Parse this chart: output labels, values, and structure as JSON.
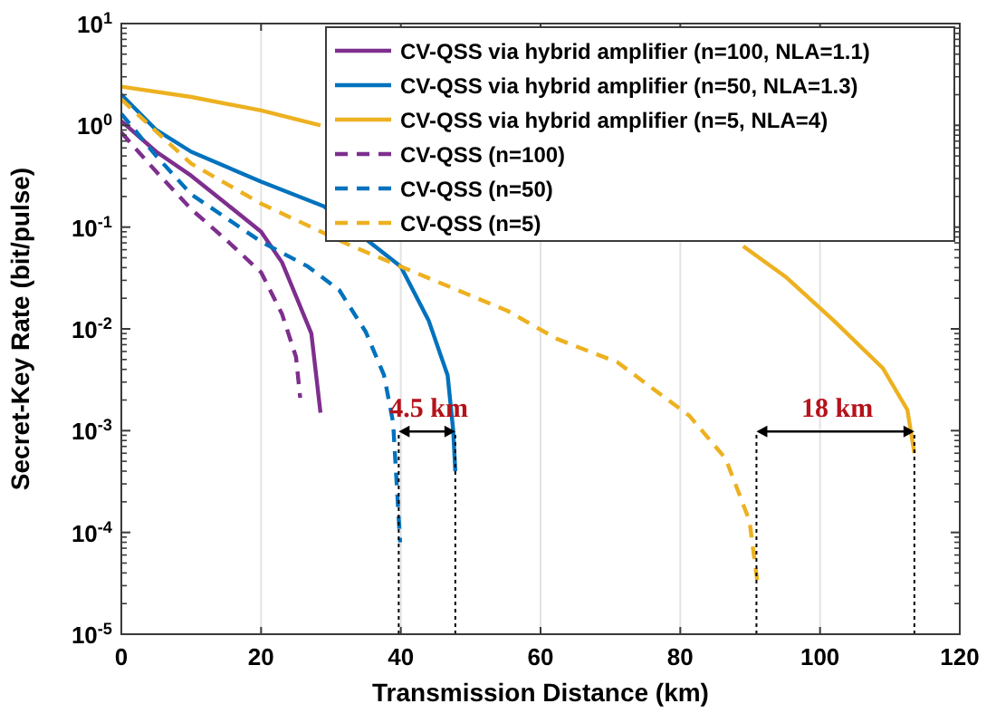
{
  "chart_data": {
    "type": "line",
    "xlabel": "Transmission Distance (km)",
    "ylabel": "Secret-Key Rate (bit/pulse)",
    "log": "y",
    "grid": "x",
    "legend": "top right",
    "xlim": [
      0,
      120
    ],
    "xticks": [
      0,
      20,
      40,
      60,
      80,
      100,
      120
    ],
    "ylim": [
      1e-05,
      10
    ],
    "yticks": [
      {
        "value": 1e-05,
        "label": "10$^{-5}$"
      },
      {
        "value": 0.0001,
        "label": "10$^{-4}$"
      },
      {
        "value": 0.001,
        "label": "10$^{-3}$"
      },
      {
        "value": 0.01,
        "label": "10$^{-2}$"
      },
      {
        "value": 0.1,
        "label": "10$^{-1}$"
      },
      {
        "value": 1,
        "label": "10$^{0}$"
      },
      {
        "value": 10,
        "label": "10$^{1}$"
      }
    ],
    "series": [
      {
        "name": "CV-QSS via hybrid amplifier (n=100, NLA=1.1)",
        "color": "#7e2f8e",
        "line_style": "solid",
        "x": [
          0,
          5,
          10,
          15,
          20,
          23,
          25,
          27.2,
          28.5
        ],
        "values": [
          1.1,
          0.55,
          0.32,
          0.17,
          0.09,
          0.045,
          0.021,
          0.009,
          0.0015
        ]
      },
      {
        "name": "CV-QSS via hybrid amplifier (n=50, NLA=1.3)",
        "color": "#0072bd",
        "line_style": "solid",
        "x": [
          0,
          5,
          10,
          20,
          29,
          40,
          44,
          46.7,
          47.5,
          47.8
        ],
        "values": [
          2.0,
          0.9,
          0.55,
          0.28,
          0.16,
          0.041,
          0.012,
          0.0035,
          0.001,
          0.0004
        ]
      },
      {
        "name": "CV-QSS via hybrid amplifier (n=5, NLA=4)",
        "color": "#edb120",
        "line_style": "solid",
        "x": [
          0,
          10,
          20,
          28.5,
          29.5,
          89,
          95.2,
          102,
          109,
          112.5,
          113.5
        ],
        "values": [
          2.4,
          1.9,
          1.4,
          1.0,
          null,
          0.065,
          0.032,
          0.012,
          0.0041,
          0.0016,
          0.0006
        ]
      },
      {
        "name": "CV-QSS (n=100)",
        "color": "#7e2f8e",
        "line_style": "dashed",
        "x": [
          0,
          5,
          10,
          15,
          20,
          23,
          25,
          25.6
        ],
        "values": [
          0.85,
          0.35,
          0.15,
          0.075,
          0.036,
          0.014,
          0.0053,
          0.0021
        ]
      },
      {
        "name": "CV-QSS (n=50)",
        "color": "#0072bd",
        "line_style": "dashed",
        "x": [
          0,
          5,
          10,
          20,
          26.7,
          31.2,
          35,
          37.6,
          38.9,
          39.9
        ],
        "values": [
          1.3,
          0.5,
          0.21,
          0.072,
          0.041,
          0.024,
          0.0093,
          0.0035,
          0.0012,
          8e-05
        ]
      },
      {
        "name": "CV-QSS (n=5)",
        "color": "#edb120",
        "line_style": "dashed",
        "x": [
          0,
          10,
          20,
          33,
          40,
          55.3,
          62.3,
          71,
          81.3,
          86.5,
          89.9,
          91
        ],
        "values": [
          1.8,
          0.42,
          0.17,
          0.065,
          0.041,
          0.015,
          0.008,
          0.0047,
          0.0014,
          0.00053,
          0.00013,
          3.4e-05
        ]
      }
    ],
    "ref_lines": [
      {
        "axis": "x",
        "value": 39.7,
        "color": "#000000",
        "line_style": "dotted"
      },
      {
        "axis": "x",
        "value": 47.8,
        "color": "#000000",
        "line_style": "dotted"
      },
      {
        "axis": "x",
        "value": 90.9,
        "color": "#000000",
        "line_style": "dotted"
      },
      {
        "axis": "x",
        "value": 113.5,
        "color": "#000000",
        "line_style": "dotted"
      }
    ],
    "annotations": [
      "4.5 km",
      "18 km"
    ]
  }
}
